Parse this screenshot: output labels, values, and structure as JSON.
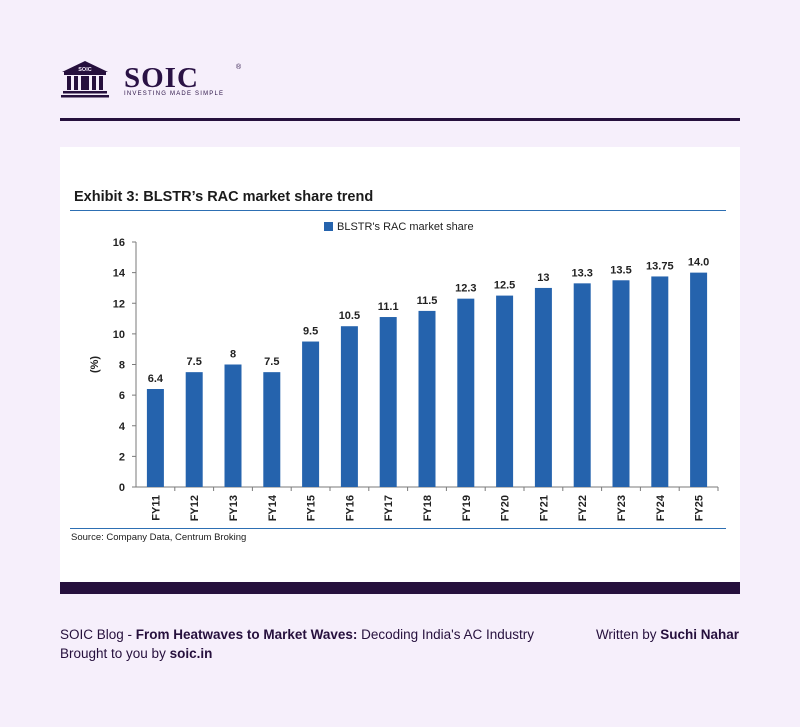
{
  "brand": {
    "name": "SOIC",
    "registered": "®",
    "tagline": "INVESTING MADE SIMPLE",
    "logo_text": "SOIC",
    "color": "#26103d"
  },
  "exhibit": {
    "title": "Exhibit 3: BLSTR’s RAC market share trend",
    "source": "Source: Company Data, Centrum Broking"
  },
  "chart_data": {
    "type": "bar",
    "title": "Exhibit 3: BLSTR’s RAC market share trend",
    "xlabel": "",
    "ylabel": "(%)",
    "ylim": [
      0,
      16
    ],
    "yticks": [
      "0",
      "2",
      "4",
      "6",
      "8",
      "10",
      "12",
      "14",
      "16"
    ],
    "legend": {
      "label": "BLSTR's RAC market share",
      "position": "top-center"
    },
    "grid": false,
    "bar_color": "#2563ad",
    "categories": [
      "FY11",
      "FY12",
      "FY13",
      "FY14",
      "FY15",
      "FY16",
      "FY17",
      "FY18",
      "FY19",
      "FY20",
      "FY21",
      "FY22",
      "FY23",
      "FY24",
      "FY25"
    ],
    "values": [
      6.4,
      7.5,
      8,
      7.5,
      9.5,
      10.5,
      11.1,
      11.5,
      12.3,
      12.5,
      13,
      13.3,
      13.5,
      13.75,
      14.0
    ],
    "value_labels": [
      "6.4",
      "7.5",
      "8",
      "7.5",
      "9.5",
      "10.5",
      "11.1",
      "11.5",
      "12.3",
      "12.5",
      "13",
      "13.3",
      "13.5",
      "13.75",
      "14.0"
    ]
  },
  "footer": {
    "blog_prefix": "SOIC Blog - ",
    "blog_title": "From Heatwaves to Market Waves:",
    "blog_subtitle": " Decoding India's AC Industry",
    "written_by": "Written by ",
    "author": "Suchi Nahar",
    "brought_by": "Brought to you by ",
    "site": "soic.in"
  }
}
